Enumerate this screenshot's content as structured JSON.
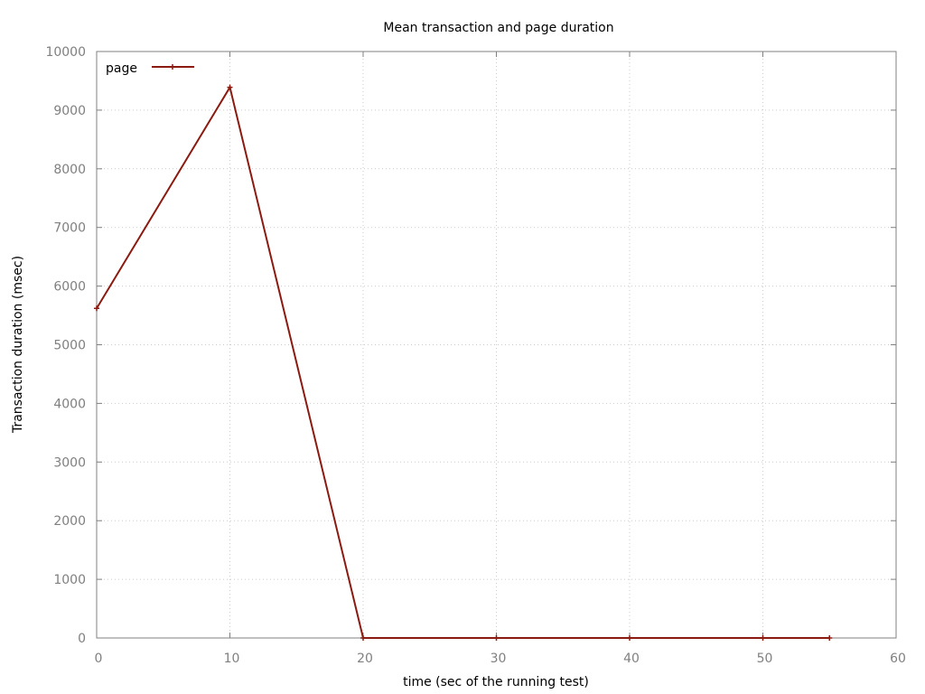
{
  "chart_data": {
    "type": "line",
    "title": "Mean transaction and page duration",
    "xlabel": "time (sec of the running test)",
    "ylabel": "Transaction duration (msec)",
    "xlim": [
      0,
      60
    ],
    "ylim": [
      0,
      10000
    ],
    "xticks": [
      0,
      10,
      20,
      30,
      40,
      50,
      60
    ],
    "yticks": [
      0,
      1000,
      2000,
      3000,
      4000,
      5000,
      6000,
      7000,
      8000,
      9000,
      10000
    ],
    "grid": true,
    "legend_position": "top-left",
    "series": [
      {
        "name": "page",
        "color": "#8b1a10",
        "marker": "plus",
        "x": [
          0,
          10,
          20,
          30,
          40,
          50,
          55
        ],
        "y": [
          5620,
          9390,
          0,
          0,
          0,
          0,
          0
        ]
      }
    ]
  }
}
